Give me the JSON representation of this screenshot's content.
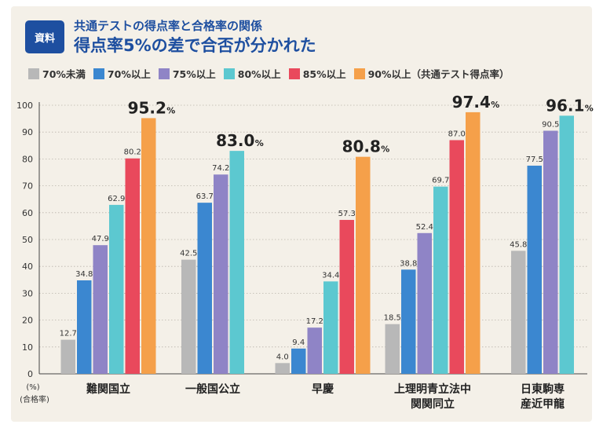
{
  "header": {
    "badge": "資料",
    "subtitle": "共通テストの得点率と合格率の関係",
    "title": "得点率5%の差で合否が分かれた"
  },
  "legend": [
    {
      "label": "70%未満",
      "color": "#b8b8b8"
    },
    {
      "label": "70%以上",
      "color": "#3b87d0"
    },
    {
      "label": "75%以上",
      "color": "#8f84c6"
    },
    {
      "label": "80%以上",
      "color": "#5cc8d0"
    },
    {
      "label": "85%以上",
      "color": "#e9495c"
    },
    {
      "label": "90%以上（共通テスト得点率）",
      "color": "#f5a04a"
    }
  ],
  "chart_data": {
    "type": "bar",
    "categories": [
      [
        "難関国立"
      ],
      [
        "一般国公立"
      ],
      [
        "早慶"
      ],
      [
        "上理明青立法中",
        "関関同立"
      ],
      [
        "日東駒専",
        "産近甲龍"
      ]
    ],
    "series": [
      {
        "name": "70%未満",
        "values": [
          12.7,
          42.5,
          4.0,
          18.5,
          45.8
        ]
      },
      {
        "name": "70%以上",
        "values": [
          34.8,
          63.7,
          9.4,
          38.8,
          77.5
        ]
      },
      {
        "name": "75%以上",
        "values": [
          47.9,
          74.2,
          17.2,
          52.4,
          90.5
        ]
      },
      {
        "name": "80%以上",
        "values": [
          62.9,
          83.0,
          34.4,
          69.7,
          96.1
        ]
      },
      {
        "name": "85%以上",
        "values": [
          80.2,
          null,
          57.3,
          87.0,
          null
        ]
      },
      {
        "name": "90%以上",
        "values": [
          95.2,
          null,
          80.8,
          97.4,
          null
        ]
      }
    ],
    "data_labels": [
      [
        "12.7",
        "34.8",
        "47.9",
        "62.9",
        "80.2",
        "95.2"
      ],
      [
        "42.5",
        "63.7",
        "74.2",
        "83.0"
      ],
      [
        "4.0",
        "9.4",
        "17.2",
        "34.4",
        "57.3",
        "80.8"
      ],
      [
        "18.5",
        "38.8",
        "52.4",
        "69.7",
        "87.0",
        "97.4"
      ],
      [
        "45.8",
        "77.5",
        "90.5",
        "96.1"
      ]
    ],
    "highlight_suffix": "%",
    "ylim": [
      0,
      100
    ],
    "yticks": [
      0,
      10,
      20,
      30,
      40,
      50,
      60,
      70,
      80,
      90,
      100
    ],
    "ylabel_unit": "(%)",
    "ylabel": "(合格率)",
    "grid": true,
    "legend_position": "top"
  }
}
